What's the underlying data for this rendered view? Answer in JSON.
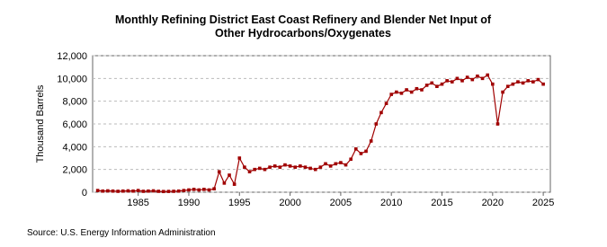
{
  "chart_data": {
    "type": "line",
    "title": "Monthly Refining District East Coast Refinery and Blender Net Input of Other Hydrocarbons/Oxygenates",
    "y_label": "Thousand Barrels",
    "source": "Source: U.S. Energy Information Administration",
    "x": [
      1981,
      1981.5,
      1982,
      1982.5,
      1983,
      1983.5,
      1984,
      1984.5,
      1985,
      1985.5,
      1986,
      1986.5,
      1987,
      1987.5,
      1988,
      1988.5,
      1989,
      1989.5,
      1990,
      1990.5,
      1991,
      1991.5,
      1992,
      1992.5,
      1993,
      1993.5,
      1994,
      1994.5,
      1995,
      1995.5,
      1996,
      1996.5,
      1997,
      1997.5,
      1998,
      1998.5,
      1999,
      1999.5,
      2000,
      2000.5,
      2001,
      2001.5,
      2002,
      2002.5,
      2003,
      2003.5,
      2004,
      2004.5,
      2005,
      2005.5,
      2006,
      2006.5,
      2007,
      2007.5,
      2008,
      2008.5,
      2009,
      2009.5,
      2010,
      2010.5,
      2011,
      2011.5,
      2012,
      2012.5,
      2013,
      2013.5,
      2014,
      2014.5,
      2015,
      2015.5,
      2016,
      2016.5,
      2017,
      2017.5,
      2018,
      2018.5,
      2019,
      2019.5,
      2020,
      2020.5,
      2021,
      2021.5,
      2022,
      2022.5,
      2023,
      2023.5,
      2024,
      2024.5,
      2025
    ],
    "series": [
      {
        "name": "East Coast",
        "color": "#a00000",
        "values": [
          150,
          100,
          120,
          100,
          80,
          100,
          120,
          100,
          150,
          80,
          100,
          120,
          80,
          60,
          70,
          80,
          100,
          150,
          200,
          250,
          200,
          250,
          200,
          300,
          1800,
          800,
          1500,
          700,
          3000,
          2200,
          1800,
          2000,
          2100,
          2000,
          2200,
          2300,
          2200,
          2400,
          2300,
          2200,
          2300,
          2200,
          2100,
          2000,
          2200,
          2500,
          2300,
          2500,
          2600,
          2400,
          2900,
          3800,
          3400,
          3600,
          4500,
          6000,
          7000,
          7800,
          8600,
          8800,
          8700,
          9000,
          8800,
          9100,
          9000,
          9400,
          9600,
          9300,
          9500,
          9800,
          9700,
          10000,
          9800,
          10100,
          9900,
          10200,
          10000,
          10300,
          9500,
          6000,
          8800,
          9300,
          9500,
          9700,
          9600,
          9800,
          9700,
          9900,
          9500
        ]
      }
    ],
    "xlim": [
      1980.5,
      2025.7
    ],
    "xticks": [
      1985,
      1990,
      1995,
      2000,
      2005,
      2010,
      2015,
      2020,
      2025
    ],
    "ylim": [
      0,
      12000
    ],
    "yticks": [
      0,
      {
        "value": 2000,
        "label": "2,000"
      },
      {
        "value": 4000,
        "label": "4,000"
      },
      {
        "value": 6000,
        "label": "6,000"
      },
      {
        "value": 8000,
        "label": "8,000"
      },
      {
        "value": 10000,
        "label": "10,000"
      },
      {
        "value": 12000,
        "label": "12,000"
      }
    ],
    "grid": true
  }
}
